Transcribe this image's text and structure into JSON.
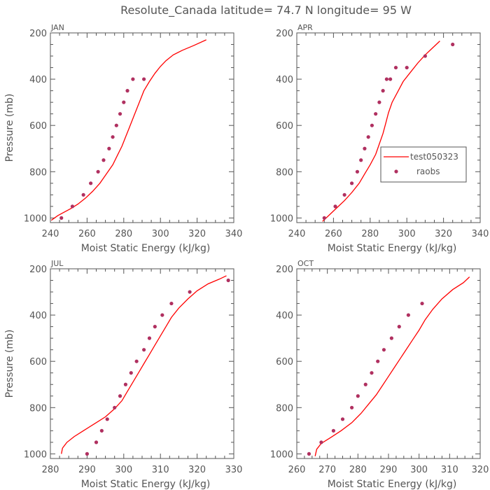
{
  "title": "Resolute_Canada  latitude= 74.7 N longitude= 95 W",
  "colors": {
    "model": "#ff0000",
    "obs": "#b03060",
    "axis": "#555555"
  },
  "legend": {
    "model_label": "test050323",
    "obs_label": "raobs",
    "panel": "APR",
    "placement": "center-right"
  },
  "chart_data": [
    {
      "type": "line",
      "panel": "JAN",
      "xlabel": "Moist Static Energy (kJ/kg)",
      "ylabel": "Pressure (mb)",
      "xlim": [
        240,
        340
      ],
      "ylim": [
        1020,
        200
      ],
      "xticks": [
        240,
        260,
        280,
        300,
        320,
        340
      ],
      "yticks": [
        200,
        400,
        600,
        800,
        1000
      ],
      "series": [
        {
          "name": "test050323",
          "kind": "line",
          "x": [
            240.5,
            244,
            247.5,
            251,
            255,
            259,
            263,
            267,
            270.5,
            274,
            276.5,
            279,
            281,
            283,
            285,
            287,
            289,
            291,
            294,
            297,
            300,
            303,
            307,
            312,
            318,
            325
          ],
          "y": [
            1010,
            990,
            975,
            960,
            940,
            915,
            885,
            850,
            810,
            770,
            730,
            690,
            650,
            610,
            570,
            530,
            490,
            450,
            410,
            375,
            345,
            320,
            295,
            275,
            255,
            230
          ]
        },
        {
          "name": "raobs",
          "kind": "scatter",
          "x": [
            246,
            252,
            258,
            262,
            266,
            269,
            272,
            274,
            276,
            278,
            280,
            282,
            285,
            291
          ],
          "y": [
            1000,
            950,
            900,
            850,
            800,
            750,
            700,
            650,
            600,
            550,
            500,
            450,
            400,
            400
          ]
        }
      ]
    },
    {
      "type": "line",
      "panel": "APR",
      "xlabel": "Moist Static Energy (kJ/kg)",
      "ylabel": "",
      "xlim": [
        240,
        340
      ],
      "ylim": [
        1020,
        200
      ],
      "xticks": [
        240,
        260,
        280,
        300,
        320,
        340
      ],
      "yticks": [
        200,
        400,
        600,
        800,
        1000
      ],
      "series": [
        {
          "name": "test050323",
          "kind": "line",
          "x": [
            254,
            258,
            262,
            266,
            270,
            274,
            277,
            280,
            283,
            285,
            287,
            288.5,
            290,
            292,
            295,
            298,
            302,
            306,
            310,
            314,
            318
          ],
          "y": [
            1015,
            985,
            955,
            925,
            890,
            850,
            810,
            770,
            725,
            680,
            635,
            590,
            545,
            500,
            455,
            410,
            370,
            330,
            295,
            265,
            235
          ]
        },
        {
          "name": "raobs",
          "kind": "scatter",
          "x": [
            255,
            261,
            266,
            270,
            273,
            275,
            277,
            279,
            281,
            283,
            285,
            287,
            289,
            291,
            294,
            300,
            310,
            325
          ],
          "y": [
            1000,
            950,
            900,
            850,
            800,
            750,
            700,
            650,
            600,
            550,
            500,
            450,
            400,
            400,
            350,
            350,
            300,
            250
          ]
        }
      ]
    },
    {
      "type": "line",
      "panel": "JUL",
      "xlabel": "Moist Static Energy (kJ/kg)",
      "ylabel": "Pressure (mb)",
      "xlim": [
        280,
        330
      ],
      "ylim": [
        1020,
        200
      ],
      "xticks": [
        280,
        290,
        300,
        310,
        320,
        330
      ],
      "yticks": [
        200,
        400,
        600,
        800,
        1000
      ],
      "series": [
        {
          "name": "test050323",
          "kind": "line",
          "x": [
            283,
            283.3,
            284.5,
            286.5,
            289,
            292,
            295,
            297.5,
            299.5,
            301,
            302.5,
            304,
            305.5,
            307,
            308.5,
            310,
            311.5,
            313,
            315,
            317.5,
            320,
            323,
            326,
            328
          ],
          "y": [
            1000,
            975,
            950,
            925,
            900,
            870,
            840,
            805,
            770,
            730,
            690,
            650,
            610,
            570,
            530,
            490,
            450,
            410,
            370,
            330,
            295,
            265,
            245,
            230
          ]
        },
        {
          "name": "raobs",
          "kind": "scatter",
          "x": [
            290,
            292.5,
            294,
            295.5,
            297.5,
            299,
            300.5,
            302,
            303.5,
            305.5,
            307,
            308.5,
            310.5,
            313,
            318,
            328.5
          ],
          "y": [
            1000,
            950,
            900,
            850,
            800,
            750,
            700,
            650,
            600,
            550,
            500,
            450,
            400,
            350,
            300,
            250
          ]
        }
      ]
    },
    {
      "type": "line",
      "panel": "OCT",
      "xlabel": "Moist Static Energy (kJ/kg)",
      "ylabel": "",
      "xlim": [
        260,
        320
      ],
      "ylim": [
        1020,
        200
      ],
      "xticks": [
        260,
        270,
        280,
        290,
        300,
        310,
        320
      ],
      "yticks": [
        200,
        400,
        600,
        800,
        1000
      ],
      "series": [
        {
          "name": "test050323",
          "kind": "line",
          "x": [
            266,
            266.5,
            268,
            271,
            274.5,
            278,
            281,
            283.5,
            286,
            288,
            290,
            292,
            294,
            296,
            298,
            300,
            302,
            304.5,
            307.5,
            311,
            314.5,
            316.5
          ],
          "y": [
            1010,
            980,
            955,
            930,
            900,
            865,
            825,
            785,
            745,
            705,
            665,
            625,
            585,
            545,
            505,
            465,
            420,
            375,
            330,
            290,
            260,
            235
          ]
        },
        {
          "name": "raobs",
          "kind": "scatter",
          "x": [
            264,
            268,
            272,
            275,
            278,
            280,
            282.5,
            284.5,
            286.5,
            288.5,
            291,
            293.5,
            296.5,
            301
          ],
          "y": [
            1000,
            950,
            900,
            850,
            800,
            750,
            700,
            650,
            600,
            550,
            500,
            450,
            400,
            350
          ]
        }
      ]
    }
  ]
}
